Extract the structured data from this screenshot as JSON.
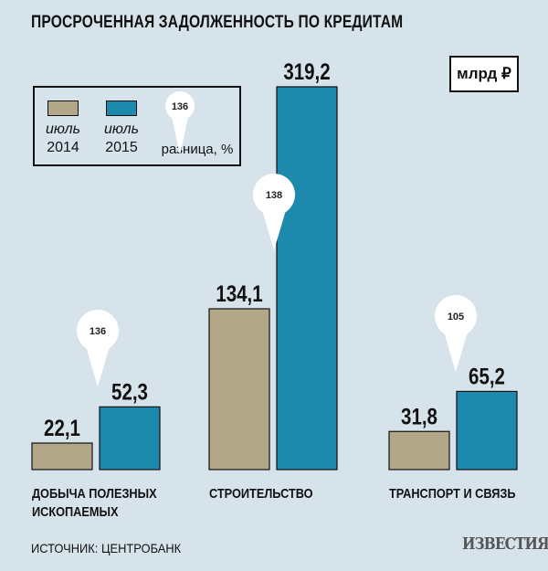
{
  "header": {
    "title": "ПРОСРОЧЕННАЯ ЗАДОЛЖЕННОСТЬ ПО КРЕДИТАМ",
    "unit": "млрд ₽"
  },
  "legend": {
    "series_2014_line1": "июль",
    "series_2014_line2": "2014",
    "series_2015_line1": "июль",
    "series_2015_line2": "2015",
    "diff_marker_value": "136",
    "diff_label": "разница, %"
  },
  "colors": {
    "series_2014": "#b2a788",
    "series_2015": "#1c89ad",
    "background": "#d7e3eb"
  },
  "chart_data": {
    "type": "bar",
    "title": "ПРОСРОЧЕННАЯ ЗАДОЛЖЕННОСТЬ ПО КРЕДИТАМ",
    "unit": "млрд ₽",
    "categories": [
      [
        "ДОБЫЧА ПОЛЕЗНЫХ",
        "ИСКОПАЕМЫХ"
      ],
      [
        "СТРОИТЕЛЬСТВО"
      ],
      [
        "ТРАНСПОРТ И СВЯЗЬ"
      ]
    ],
    "series": [
      {
        "name": "июль 2014",
        "values": [
          22.1,
          134.1,
          31.8
        ],
        "labels": [
          "22,1",
          "134,1",
          "31,8"
        ]
      },
      {
        "name": "июль 2015",
        "values": [
          52.3,
          319.2,
          65.2
        ],
        "labels": [
          "52,3",
          "319,2",
          "65,2"
        ]
      }
    ],
    "difference_pct": [
      "136",
      "138",
      "105"
    ],
    "ylim": [
      0,
      319.2
    ],
    "grid": false,
    "legend_position": "top-left"
  },
  "footer": {
    "source": "ИСТОЧНИК: ЦЕНТРОБАНК",
    "logo": "ИЗВЕСТИЯ"
  }
}
